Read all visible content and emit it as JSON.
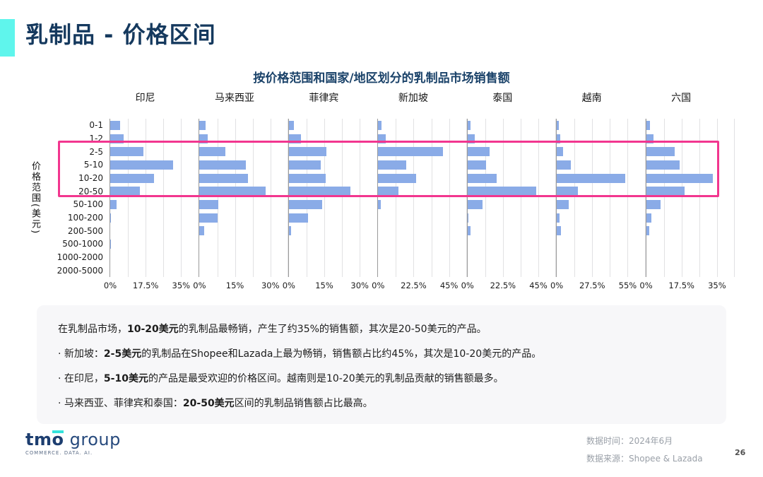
{
  "header": {
    "title": "乳制品 - 价格区间"
  },
  "chart_data": {
    "type": "bar",
    "orientation": "horizontal",
    "title": "按价格范围和国家/地区划分的乳制品市场销售额",
    "y_axis_title": "价格范围(美元)",
    "unit": "%",
    "grid": true,
    "bar_color": "#8aabe7",
    "highlight_color": "#f2368f",
    "categories": [
      "0-1",
      "1-2",
      "2-5",
      "5-10",
      "10-20",
      "20-50",
      "50-100",
      "100-200",
      "200-500",
      "500-1000",
      "1000-2000",
      "2000-5000"
    ],
    "highlighted_categories": [
      "2-5",
      "5-10",
      "10-20",
      "20-50"
    ],
    "panels": [
      {
        "name": "印尼",
        "axis_ticks": [
          "0%",
          "17.5%",
          "35%"
        ],
        "axis_max": 35,
        "values": [
          5,
          6.5,
          16.5,
          31,
          21.5,
          14.5,
          3,
          0.5,
          0,
          0.5,
          0,
          0
        ]
      },
      {
        "name": "马来西亚",
        "axis_ticks": [
          "0%",
          "15%",
          "30%"
        ],
        "axis_max": 30,
        "values": [
          2.5,
          3.5,
          11,
          19.5,
          20.5,
          28,
          8,
          7.5,
          2,
          0,
          0,
          0
        ]
      },
      {
        "name": "菲律宾",
        "axis_ticks": [
          "0%",
          "15%",
          "30%"
        ],
        "axis_max": 30,
        "values": [
          2,
          5,
          16,
          13.5,
          15.5,
          26,
          14,
          8,
          1,
          0,
          0,
          0
        ]
      },
      {
        "name": "新加坡",
        "axis_ticks": [
          "0%",
          "22.5%",
          "45%"
        ],
        "axis_max": 45,
        "values": [
          2,
          5,
          41,
          18,
          24,
          13,
          1.5,
          0,
          0,
          0,
          0,
          0
        ]
      },
      {
        "name": "泰国",
        "axis_ticks": [
          "0%",
          "22.5%",
          "45%"
        ],
        "axis_max": 45,
        "values": [
          2,
          4.5,
          14,
          12,
          18.5,
          43.5,
          9.5,
          0.5,
          2,
          0,
          0,
          0
        ]
      },
      {
        "name": "越南",
        "axis_ticks": [
          "0%",
          "27.5%",
          "55%"
        ],
        "axis_max": 55,
        "values": [
          1.5,
          2.5,
          5,
          11,
          53,
          16.5,
          9,
          2,
          3.5,
          0,
          0,
          0
        ]
      },
      {
        "name": "六国",
        "axis_ticks": [
          "0%",
          "17.5%",
          "35%"
        ],
        "axis_max": 35,
        "values": [
          2,
          3.5,
          14,
          16.5,
          33,
          19,
          7,
          2.5,
          1.5,
          0,
          0,
          0
        ]
      }
    ]
  },
  "insights": {
    "lines": [
      [
        {
          "t": "在乳制品市场，",
          "b": 0
        },
        {
          "t": "10-20美元",
          "b": 1
        },
        {
          "t": "的乳制品最畅销，产生了约35%的销售额，其次是20-50美元的产品。",
          "b": 0
        }
      ],
      [
        {
          "t": "· 新加坡：",
          "b": 0
        },
        {
          "t": "2-5美元",
          "b": 1
        },
        {
          "t": "的乳制品在Shopee和Lazada上最为畅销，销售额占比约45%，其次是10-20美元的产品。",
          "b": 0
        }
      ],
      [
        {
          "t": "· 在印尼，",
          "b": 0
        },
        {
          "t": "5-10美元",
          "b": 1
        },
        {
          "t": "的产品是最受欢迎的价格区间。越南则是10-20美元的乳制品贡献的销售额最多。",
          "b": 0
        }
      ],
      [
        {
          "t": "· 马来西亚、菲律宾和泰国：",
          "b": 0
        },
        {
          "t": "20-50美元",
          "b": 1
        },
        {
          "t": "区间的乳制品销售额占比最高。",
          "b": 0
        }
      ]
    ]
  },
  "footer": {
    "logo_text": "tm",
    "logo_o": "o",
    "logo_suffix": " group",
    "logo_tagline": "COMMERCE. DATA. AI.",
    "data_time": "数据时间：2024年6月",
    "data_source": "数据来源：Shopee & Lazada",
    "page_number": "26"
  },
  "colors": {
    "accent_cyan": "#5ff5ec",
    "title_navy": "#15395e",
    "bar_blue": "#8aabe7",
    "highlight_pink": "#f2368f",
    "insights_bg": "#f7f7f9",
    "footer_gray": "#9aa0a8"
  }
}
